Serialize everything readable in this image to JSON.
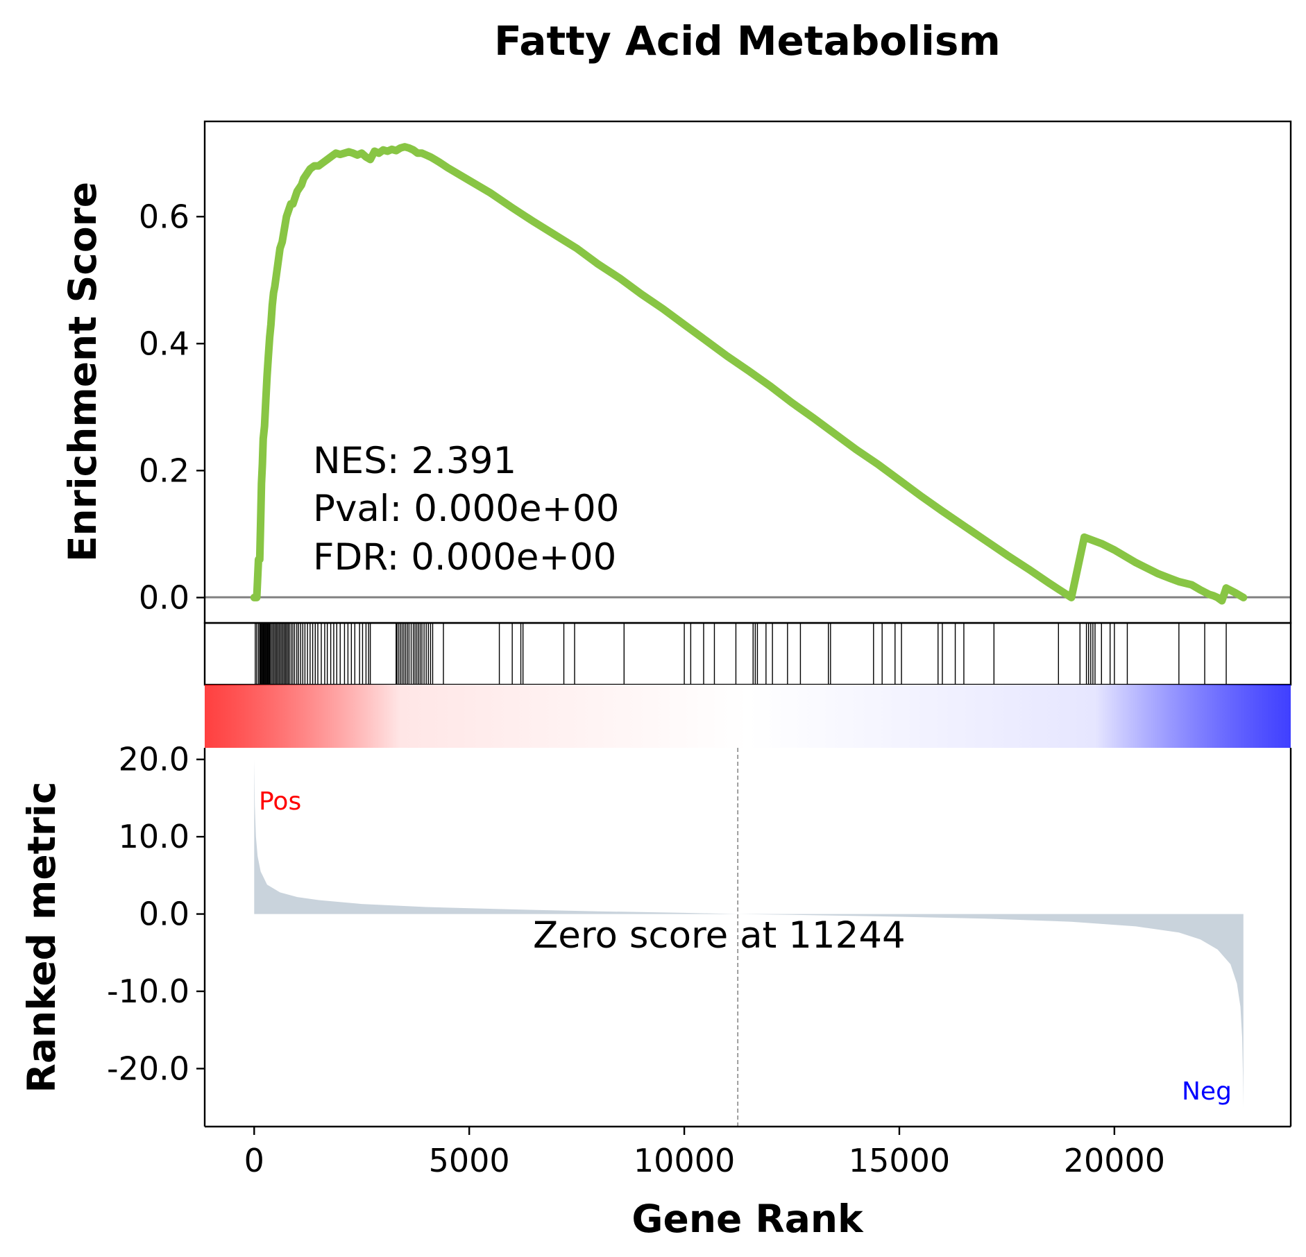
{
  "chart_data": {
    "type": "line",
    "title": "Fatty Acid Metabolism",
    "xlabel": "Gene Rank",
    "es_ylabel": "Enrichment Score",
    "rank_ylabel": "Ranked metric",
    "xlim": [
      -1150,
      24100
    ],
    "x_ticks": [
      0,
      5000,
      10000,
      15000,
      20000
    ],
    "x_tick_labels": [
      "0",
      "5000",
      "10000",
      "15000",
      "20000"
    ],
    "es_ylim": [
      -0.04,
      0.75
    ],
    "es_ticks": [
      0.0,
      0.2,
      0.4,
      0.6
    ],
    "es_tick_labels": [
      "0.0",
      "0.2",
      "0.4",
      "0.6"
    ],
    "rank_ylim": [
      -27.5,
      21.5
    ],
    "rank_ticks": [
      20,
      10,
      0,
      -10,
      -20
    ],
    "rank_tick_labels": [
      "20.0",
      "10.0",
      "0.0",
      "-10.0",
      "-20.0"
    ],
    "n_genes": 23000,
    "zero_cross": 11244,
    "series": [
      {
        "color": "#88c544",
        "x": [
          0,
          60,
          100,
          130,
          150,
          170,
          190,
          210,
          240,
          270,
          300,
          330,
          360,
          390,
          420,
          450,
          480,
          520,
          560,
          600,
          650,
          700,
          750,
          800,
          850,
          900,
          950,
          1000,
          1050,
          1100,
          1150,
          1200,
          1300,
          1400,
          1500,
          1600,
          1700,
          1800,
          1900,
          2000,
          2100,
          2200,
          2300,
          2400,
          2500,
          2600,
          2700,
          2800,
          2900,
          3000,
          3100,
          3200,
          3300,
          3400,
          3500,
          3600,
          3700,
          3800,
          3900,
          4000,
          4100,
          4200,
          4300,
          4500,
          5000,
          5500,
          6000,
          6500,
          7000,
          7500,
          8000,
          8500,
          9000,
          9500,
          10000,
          10500,
          11000,
          11500,
          12000,
          12500,
          13000,
          13500,
          14000,
          14500,
          15000,
          15500,
          16000,
          16500,
          17000,
          17500,
          18000,
          18500,
          19000,
          19300,
          19500,
          19700,
          20000,
          20500,
          21000,
          21300,
          21500,
          21800,
          22000,
          22200,
          22300,
          22400,
          22500,
          22600,
          22800,
          23000
        ],
        "values": [
          0.0,
          0.0,
          0.06,
          0.06,
          0.12,
          0.18,
          0.21,
          0.25,
          0.27,
          0.31,
          0.35,
          0.38,
          0.41,
          0.43,
          0.46,
          0.48,
          0.49,
          0.51,
          0.53,
          0.55,
          0.56,
          0.58,
          0.6,
          0.61,
          0.62,
          0.62,
          0.63,
          0.64,
          0.645,
          0.65,
          0.66,
          0.665,
          0.675,
          0.68,
          0.68,
          0.685,
          0.69,
          0.695,
          0.7,
          0.698,
          0.7,
          0.702,
          0.7,
          0.697,
          0.7,
          0.694,
          0.69,
          0.703,
          0.7,
          0.705,
          0.703,
          0.706,
          0.704,
          0.708,
          0.71,
          0.708,
          0.705,
          0.7,
          0.7,
          0.697,
          0.694,
          0.69,
          0.686,
          0.677,
          0.657,
          0.637,
          0.614,
          0.592,
          0.571,
          0.55,
          0.525,
          0.503,
          0.478,
          0.455,
          0.43,
          0.405,
          0.38,
          0.357,
          0.333,
          0.307,
          0.283,
          0.258,
          0.233,
          0.21,
          0.185,
          0.16,
          0.136,
          0.113,
          0.09,
          0.067,
          0.045,
          0.022,
          0.0,
          0.095,
          0.09,
          0.085,
          0.075,
          0.055,
          0.038,
          0.03,
          0.025,
          0.02,
          0.012,
          0.005,
          0.003,
          0.0,
          -0.005,
          0.015,
          0.008,
          0.0
        ]
      }
    ],
    "hit_positions": [
      25,
      60,
      100,
      130,
      150,
      170,
      190,
      210,
      230,
      250,
      270,
      290,
      310,
      330,
      350,
      370,
      400,
      430,
      460,
      490,
      520,
      550,
      580,
      610,
      640,
      670,
      700,
      730,
      760,
      790,
      820,
      860,
      900,
      940,
      990,
      1030,
      1080,
      1130,
      1180,
      1240,
      1300,
      1360,
      1420,
      1480,
      1560,
      1640,
      1700,
      1780,
      1850,
      1920,
      2000,
      2100,
      2180,
      2260,
      2340,
      2450,
      2520,
      2600,
      2660,
      2700,
      3300,
      3320,
      3360,
      3400,
      3440,
      3480,
      3520,
      3560,
      3600,
      3650,
      3700,
      3740,
      3780,
      3820,
      3860,
      3900,
      3950,
      4000,
      4050,
      4100,
      4150,
      4400,
      5700,
      6000,
      6200,
      6250,
      7200,
      7450,
      8600,
      10000,
      10150,
      10450,
      10700,
      11200,
      11600,
      11650,
      11700,
      11900,
      12050,
      12400,
      12700,
      13350,
      13400,
      14400,
      14600,
      14900,
      15050,
      15900,
      16000,
      16300,
      16500,
      17200,
      18700,
      19200,
      19350,
      19400,
      19450,
      19500,
      19550,
      19700,
      19900,
      20000,
      20300,
      21500,
      22100,
      22600
    ],
    "rank_metric": {
      "color": "#c9d3dc",
      "x": [
        0,
        5,
        15,
        40,
        80,
        150,
        300,
        600,
        1000,
        1500,
        2500,
        4000,
        6000,
        8000,
        10000,
        11244,
        13000,
        15000,
        17000,
        19000,
        20500,
        21500,
        22000,
        22400,
        22700,
        22850,
        22930,
        22970,
        22990,
        23000
      ],
      "values": [
        20,
        18,
        14,
        10,
        7.5,
        5.5,
        3.8,
        2.8,
        2.2,
        1.8,
        1.3,
        0.9,
        0.6,
        0.35,
        0.15,
        0.0,
        -0.15,
        -0.35,
        -0.6,
        -1.0,
        -1.6,
        -2.4,
        -3.3,
        -4.6,
        -6.5,
        -9.0,
        -12.0,
        -16.0,
        -21.0,
        -25.0
      ]
    },
    "colorbar": {
      "pos_color": "#ff0000",
      "neg_color": "#0000ff",
      "mid_color": "#ffffff"
    },
    "annotations": {
      "nes": "NES: 2.391",
      "pval": "Pval: 0.000e+00",
      "fdr": "FDR: 0.000e+00",
      "zero_label": "Zero score at 11244",
      "pos_label": "Pos",
      "neg_label": "Neg",
      "pos_color": "#ff0000",
      "neg_color": "#0000ff"
    }
  }
}
